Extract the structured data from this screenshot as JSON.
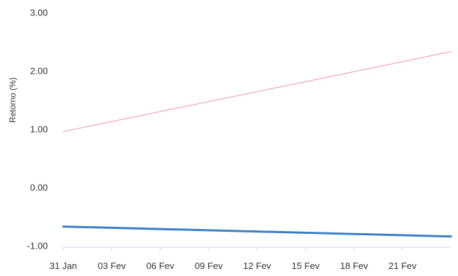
{
  "chart_data": {
    "type": "line",
    "title": "",
    "xlabel": "",
    "ylabel": "Retorno (%)",
    "ylim": [
      -1.0,
      3.0
    ],
    "yticks": [
      {
        "value": 3.0,
        "label": "3.00"
      },
      {
        "value": 2.0,
        "label": "2.00"
      },
      {
        "value": 1.0,
        "label": "1.00"
      },
      {
        "value": 0.0,
        "label": "0.00"
      },
      {
        "value": -1.0,
        "label": "-1.00"
      }
    ],
    "xlim": [
      "31 Jan",
      "24 Fev"
    ],
    "xticks": [
      "31 Jan",
      "03 Fev",
      "06 Fev",
      "09 Fev",
      "12 Fev",
      "15 Fev",
      "18 Fev",
      "21 Fev"
    ],
    "grid": false,
    "series": [
      {
        "color": "#f2a5b3",
        "x": [
          "31 Jan",
          "24 Fev"
        ],
        "values": [
          0.96,
          2.33
        ]
      },
      {
        "color": "#3a7fc4",
        "x": [
          "31 Jan",
          "24 Fev"
        ],
        "values": [
          -0.67,
          -0.84
        ]
      }
    ]
  }
}
